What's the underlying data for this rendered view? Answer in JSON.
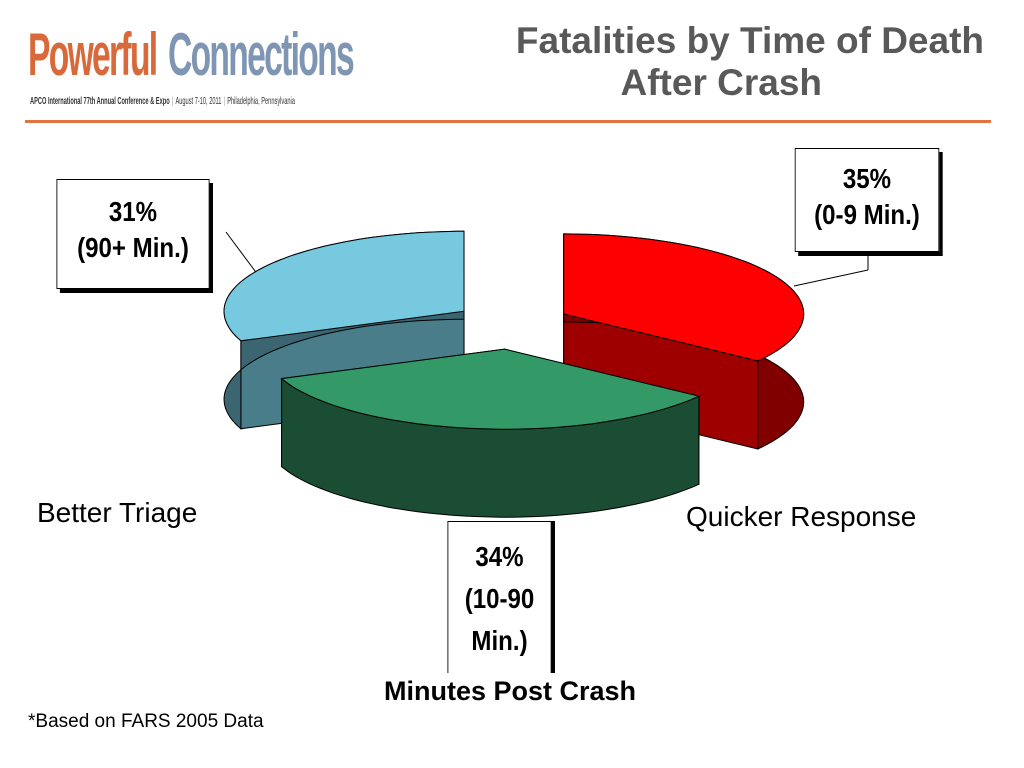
{
  "header": {
    "logo_word_1": "Powerful",
    "logo_word_2": "Connections",
    "logo_tagline_1": "APCO International 77th Annual Conference & Expo",
    "logo_tagline_2": "August 7-10, 2011",
    "logo_tagline_3": "Philadelphia, Pennsylvania",
    "title_line_1": "Fatalities by Time of Death",
    "title_line_2": "After Crash"
  },
  "chart_data": {
    "type": "pie",
    "style": "3d-exploded",
    "title": "Fatalities by Time of Death After Crash",
    "xlabel": "Minutes Post Crash",
    "slices": [
      {
        "key": "0-9",
        "percent": 35,
        "label_value": "35%",
        "label_range": "(0-9 Min.)",
        "color": "#ff0000"
      },
      {
        "key": "10-90",
        "percent": 34,
        "label_value": "34%",
        "label_range_1": "(10-90",
        "label_range_2": "Min.)",
        "color": "#339966"
      },
      {
        "key": "90+",
        "percent": 31,
        "label_value": "31%",
        "label_range": "(90+ Min.)",
        "color": "#76c9df"
      }
    ],
    "annotations": {
      "better_triage": "Better Triage",
      "quicker_response": "Quicker Response"
    }
  },
  "footnote": "*Based on FARS 2005 Data",
  "colors": {
    "accent_rule": "#e2743f",
    "logo_orange": "#d9683a",
    "logo_blue": "#7e96b3",
    "title_gray": "#595959"
  }
}
